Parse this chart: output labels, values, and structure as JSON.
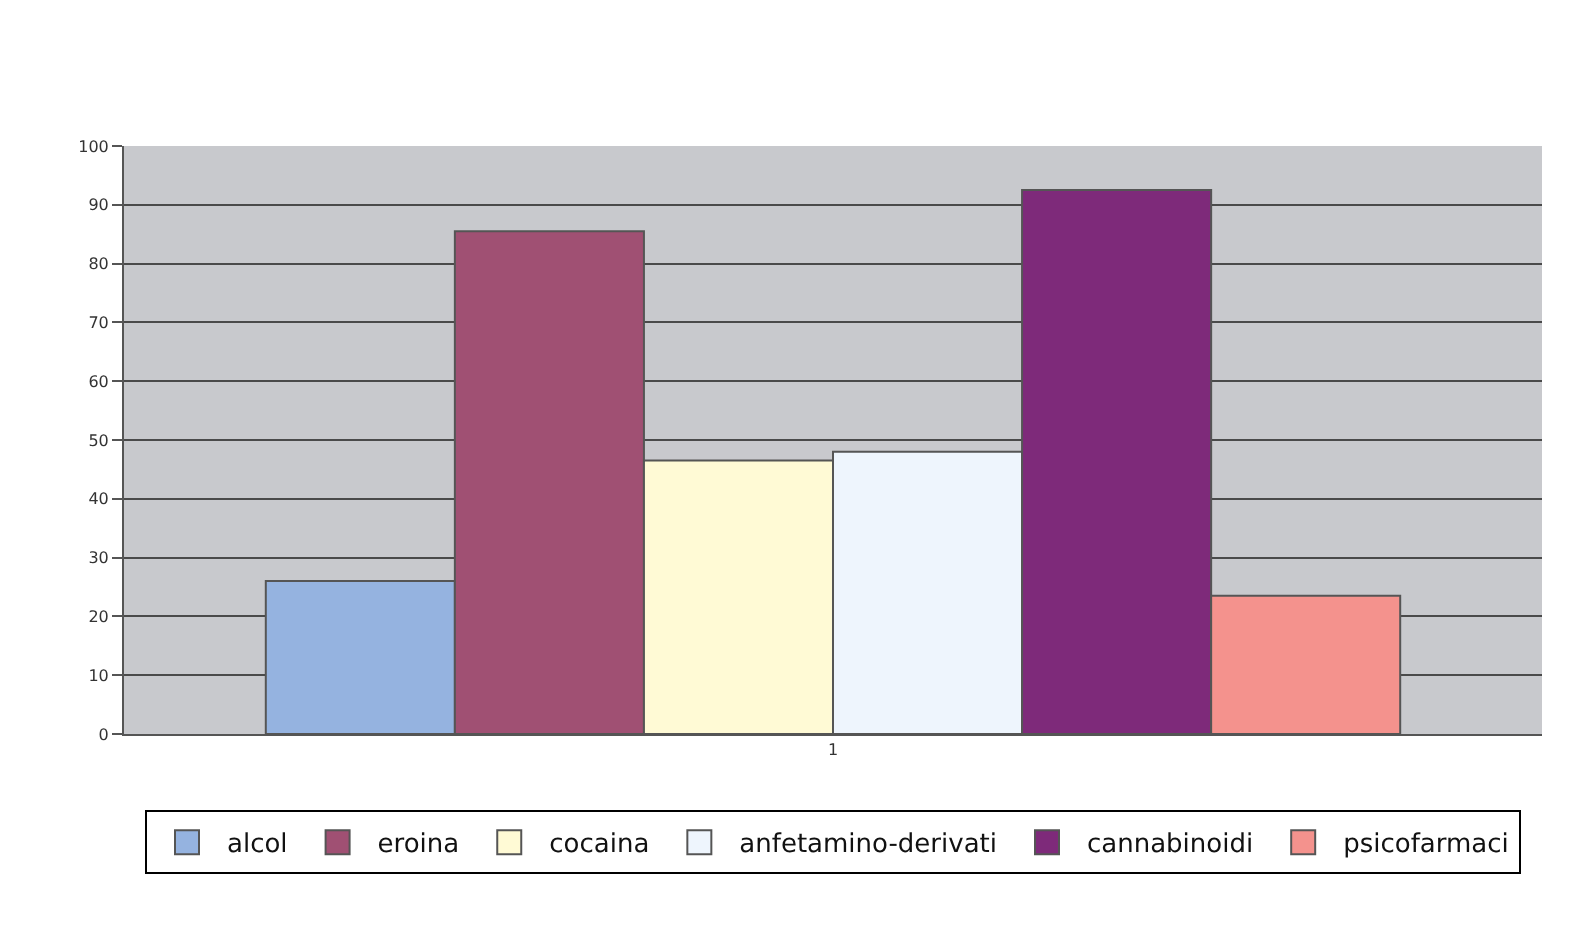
{
  "chart_data": {
    "type": "bar",
    "categories": [
      "1"
    ],
    "series": [
      {
        "name": "alcol",
        "color": "#95b3e0",
        "values": [
          26
        ]
      },
      {
        "name": "eroina",
        "color": "#a05073",
        "values": [
          85.5
        ]
      },
      {
        "name": "cocaina",
        "color": "#fffad5",
        "values": [
          46.5
        ]
      },
      {
        "name": "anfetamino-derivati",
        "color": "#eef5fd",
        "values": [
          48
        ]
      },
      {
        "name": "cannabinoidi",
        "color": "#7e2a7a",
        "values": [
          92.5
        ]
      },
      {
        "name": "psicofarmaci",
        "color": "#f4928d",
        "values": [
          23.5
        ]
      }
    ],
    "ylim": [
      0,
      100
    ],
    "yticks": [
      0,
      10,
      20,
      30,
      40,
      50,
      60,
      70,
      80,
      90,
      100
    ],
    "grid": "y",
    "legend": "bottom"
  }
}
